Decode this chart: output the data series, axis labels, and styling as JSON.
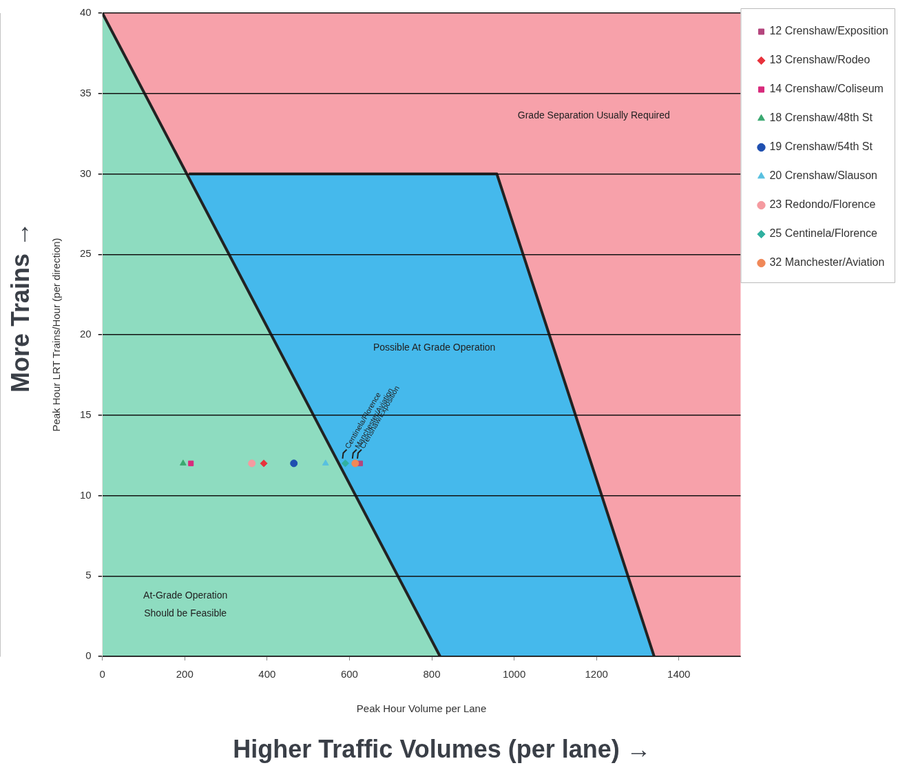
{
  "chart_data": {
    "type": "scatter",
    "xlabel": "Peak Hour Volume per Lane",
    "ylabel": "Peak Hour LRT Trains/Hour (per direction)",
    "xlim": [
      0,
      1550
    ],
    "xticks": [
      0,
      200,
      400,
      600,
      800,
      1000,
      1200,
      1400
    ],
    "ylim": [
      0,
      40
    ],
    "yticks": [
      0,
      5,
      10,
      15,
      20,
      25,
      30,
      35,
      40
    ],
    "grid": "y",
    "legend": "right",
    "bands": [
      {
        "axis": "y",
        "from": 0,
        "to": 40,
        "color": "#f7a1aa"
      }
    ],
    "series": [
      {
        "type": "area",
        "color": "#45b9ec",
        "x": [
          210,
          958,
          1340
        ],
        "values": [
          30,
          30,
          0
        ]
      },
      {
        "type": "area",
        "color": "#8edcc0",
        "x": [
          0,
          820
        ],
        "values": [
          40,
          0
        ]
      },
      {
        "name": "12 Crenshaw/Exposition",
        "color": "#b4467e",
        "marker": "square",
        "x": [
          626
        ],
        "values": [
          12
        ]
      },
      {
        "name": "13 Crenshaw/Rodeo",
        "color": "#e8323c",
        "marker": "diamond",
        "x": [
          392
        ],
        "values": [
          12
        ]
      },
      {
        "name": "14 Crenshaw/Coliseum",
        "color": "#d82a7c",
        "marker": "square",
        "x": [
          215
        ],
        "values": [
          12
        ]
      },
      {
        "name": "18 Crenshaw/48th St",
        "color": "#3aa870",
        "marker": "triangle",
        "x": [
          196
        ],
        "values": [
          12
        ]
      },
      {
        "name": "19 Crenshaw/54th St",
        "color": "#1f4fb0",
        "marker": "circle",
        "x": [
          465
        ],
        "values": [
          12
        ]
      },
      {
        "name": "20 Crenshaw/Slauson",
        "color": "#58c0e0",
        "marker": "triangle",
        "x": [
          542
        ],
        "values": [
          12
        ]
      },
      {
        "name": "23 Redondo/Florence",
        "color": "#f59aa0",
        "marker": "circle",
        "x": [
          363
        ],
        "values": [
          12
        ]
      },
      {
        "name": "25 Centinela/Florence",
        "color": "#30b0a0",
        "marker": "diamond",
        "x": [
          590
        ],
        "values": [
          12
        ]
      },
      {
        "name": "32 Manchester/Aviation",
        "color": "#f08858",
        "marker": "circle",
        "x": [
          614
        ],
        "values": [
          12
        ]
      }
    ],
    "annotations": [
      "More Trains →",
      "Higher Traffic Volumes (per lane) →",
      "Grade Separation Usually Required",
      "Possible At Grade Operation",
      "At-Grade Operation\nShould be Feasible",
      {
        "text": "Centinela/Florence",
        "x": 590,
        "y": 12
      },
      {
        "text": "Manchester/Aviation",
        "x": 614,
        "y": 12
      },
      {
        "text": "Crenshaw/Exposition",
        "x": 626,
        "y": 12
      }
    ]
  }
}
